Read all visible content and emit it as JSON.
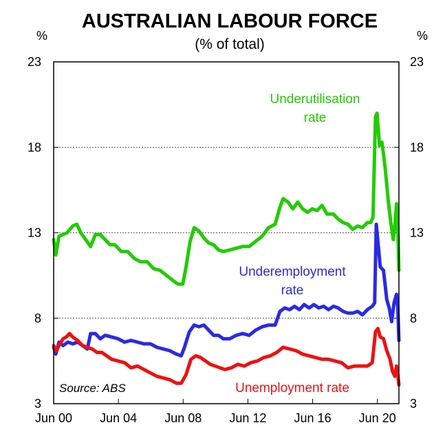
{
  "chart_data": {
    "type": "line",
    "title": "AUSTRALIAN LABOUR FORCE",
    "subtitle": "(% of total)",
    "ylabel_left": "%",
    "ylabel_right": "%",
    "ylim": [
      3,
      23
    ],
    "yticks": [
      3,
      8,
      13,
      18,
      23
    ],
    "xlim": [
      2000.42,
      2021.75
    ],
    "xticks": [
      {
        "value": 2000.42,
        "label": "Jun 00"
      },
      {
        "value": 2004.42,
        "label": "Jun 04"
      },
      {
        "value": 2008.42,
        "label": "Jun 08"
      },
      {
        "value": 2012.42,
        "label": "Jun 12"
      },
      {
        "value": 2016.42,
        "label": "Jun 16"
      },
      {
        "value": 2020.42,
        "label": "Jun 20"
      }
    ],
    "grid": "horizontal dotted",
    "source": "Source: ABS",
    "series": [
      {
        "name": "Underutilisation rate",
        "label_lines": [
          "Underutilisation",
          "rate"
        ],
        "color": "#22cc00",
        "points": [
          [
            2000.42,
            12.6
          ],
          [
            2000.55,
            11.7
          ],
          [
            2000.75,
            12.8
          ],
          [
            2001.0,
            12.9
          ],
          [
            2001.25,
            13.0
          ],
          [
            2001.6,
            13.4
          ],
          [
            2001.85,
            13.5
          ],
          [
            2002.1,
            13.0
          ],
          [
            2002.4,
            12.6
          ],
          [
            2002.7,
            12.2
          ],
          [
            2003.0,
            12.9
          ],
          [
            2003.3,
            12.9
          ],
          [
            2003.6,
            12.6
          ],
          [
            2003.9,
            12.3
          ],
          [
            2004.2,
            12.3
          ],
          [
            2004.6,
            11.9
          ],
          [
            2005.0,
            11.9
          ],
          [
            2005.4,
            11.5
          ],
          [
            2005.8,
            11.3
          ],
          [
            2006.2,
            11.3
          ],
          [
            2006.6,
            10.9
          ],
          [
            2007.0,
            10.8
          ],
          [
            2007.4,
            10.5
          ],
          [
            2007.8,
            10.2
          ],
          [
            2008.1,
            10.0
          ],
          [
            2008.4,
            10.0
          ],
          [
            2008.6,
            11.0
          ],
          [
            2008.85,
            12.5
          ],
          [
            2009.1,
            13.3
          ],
          [
            2009.4,
            13.1
          ],
          [
            2009.7,
            12.7
          ],
          [
            2010.0,
            12.4
          ],
          [
            2010.3,
            12.3
          ],
          [
            2010.6,
            12.0
          ],
          [
            2010.9,
            11.9
          ],
          [
            2011.3,
            12.0
          ],
          [
            2011.7,
            12.1
          ],
          [
            2012.1,
            12.2
          ],
          [
            2012.5,
            12.2
          ],
          [
            2012.9,
            12.5
          ],
          [
            2013.3,
            12.8
          ],
          [
            2013.7,
            13.3
          ],
          [
            2014.1,
            13.5
          ],
          [
            2014.4,
            14.5
          ],
          [
            2014.6,
            15.0
          ],
          [
            2014.9,
            14.8
          ],
          [
            2015.2,
            14.4
          ],
          [
            2015.5,
            14.8
          ],
          [
            2015.8,
            14.4
          ],
          [
            2016.1,
            14.2
          ],
          [
            2016.4,
            14.4
          ],
          [
            2016.7,
            14.3
          ],
          [
            2017.0,
            14.6
          ],
          [
            2017.3,
            14.1
          ],
          [
            2017.7,
            14.1
          ],
          [
            2018.0,
            13.8
          ],
          [
            2018.3,
            13.6
          ],
          [
            2018.6,
            13.5
          ],
          [
            2018.9,
            13.2
          ],
          [
            2019.2,
            13.4
          ],
          [
            2019.5,
            13.3
          ],
          [
            2019.8,
            13.6
          ],
          [
            2020.0,
            13.6
          ],
          [
            2020.15,
            13.9
          ],
          [
            2020.3,
            19.8
          ],
          [
            2020.4,
            20.0
          ],
          [
            2020.55,
            18.1
          ],
          [
            2020.7,
            18.3
          ],
          [
            2020.9,
            16.8
          ],
          [
            2021.1,
            14.8
          ],
          [
            2021.25,
            13.6
          ],
          [
            2021.4,
            12.6
          ],
          [
            2021.5,
            13.4
          ],
          [
            2021.6,
            14.7
          ],
          [
            2021.68,
            13.3
          ],
          [
            2021.75,
            10.8
          ]
        ]
      },
      {
        "name": "Underemployment rate",
        "label_lines": [
          "Underemployment",
          "rate"
        ],
        "color": "#2a2ae6",
        "points": [
          [
            2000.42,
            6.3
          ],
          [
            2000.55,
            5.9
          ],
          [
            2000.75,
            6.6
          ],
          [
            2001.0,
            6.4
          ],
          [
            2001.3,
            6.6
          ],
          [
            2001.6,
            6.5
          ],
          [
            2001.9,
            6.6
          ],
          [
            2002.2,
            6.4
          ],
          [
            2002.5,
            6.2
          ],
          [
            2002.7,
            7.1
          ],
          [
            2003.0,
            7.1
          ],
          [
            2003.3,
            6.8
          ],
          [
            2003.6,
            7.0
          ],
          [
            2004.0,
            6.9
          ],
          [
            2004.4,
            6.8
          ],
          [
            2004.8,
            6.6
          ],
          [
            2005.2,
            6.7
          ],
          [
            2005.6,
            6.6
          ],
          [
            2006.0,
            6.5
          ],
          [
            2006.4,
            6.5
          ],
          [
            2006.8,
            6.3
          ],
          [
            2007.2,
            6.2
          ],
          [
            2007.6,
            6.1
          ],
          [
            2008.0,
            5.9
          ],
          [
            2008.3,
            5.8
          ],
          [
            2008.5,
            6.3
          ],
          [
            2008.8,
            7.2
          ],
          [
            2009.1,
            7.6
          ],
          [
            2009.4,
            7.5
          ],
          [
            2009.7,
            7.6
          ],
          [
            2010.0,
            7.3
          ],
          [
            2010.3,
            7.0
          ],
          [
            2010.6,
            7.0
          ],
          [
            2010.9,
            6.8
          ],
          [
            2011.3,
            6.8
          ],
          [
            2011.7,
            7.0
          ],
          [
            2012.1,
            7.1
          ],
          [
            2012.5,
            7.0
          ],
          [
            2012.9,
            7.3
          ],
          [
            2013.3,
            7.5
          ],
          [
            2013.7,
            7.6
          ],
          [
            2014.1,
            7.6
          ],
          [
            2014.4,
            8.4
          ],
          [
            2014.7,
            8.6
          ],
          [
            2015.0,
            8.5
          ],
          [
            2015.3,
            8.7
          ],
          [
            2015.6,
            8.5
          ],
          [
            2015.9,
            8.8
          ],
          [
            2016.2,
            8.6
          ],
          [
            2016.5,
            8.8
          ],
          [
            2016.8,
            8.6
          ],
          [
            2017.1,
            8.7
          ],
          [
            2017.4,
            8.5
          ],
          [
            2017.7,
            8.7
          ],
          [
            2018.0,
            8.6
          ],
          [
            2018.3,
            8.4
          ],
          [
            2018.6,
            8.3
          ],
          [
            2018.9,
            8.3
          ],
          [
            2019.2,
            8.4
          ],
          [
            2019.5,
            8.2
          ],
          [
            2019.8,
            8.5
          ],
          [
            2020.1,
            8.7
          ],
          [
            2020.25,
            8.9
          ],
          [
            2020.35,
            13.5
          ],
          [
            2020.45,
            12.5
          ],
          [
            2020.6,
            11.0
          ],
          [
            2020.8,
            10.8
          ],
          [
            2021.0,
            9.1
          ],
          [
            2021.15,
            8.6
          ],
          [
            2021.3,
            7.8
          ],
          [
            2021.45,
            8.9
          ],
          [
            2021.6,
            9.4
          ],
          [
            2021.68,
            8.6
          ],
          [
            2021.75,
            6.7
          ]
        ]
      },
      {
        "name": "Unemployment rate",
        "label_lines": [
          "Unemployment rate"
        ],
        "color": "#ee1111",
        "points": [
          [
            2000.42,
            6.4
          ],
          [
            2000.6,
            6.1
          ],
          [
            2000.8,
            6.5
          ],
          [
            2001.0,
            6.8
          ],
          [
            2001.2,
            6.9
          ],
          [
            2001.4,
            7.1
          ],
          [
            2001.6,
            6.9
          ],
          [
            2001.9,
            6.7
          ],
          [
            2002.2,
            6.4
          ],
          [
            2002.5,
            6.3
          ],
          [
            2002.8,
            6.2
          ],
          [
            2003.1,
            6.0
          ],
          [
            2003.4,
            6.0
          ],
          [
            2003.7,
            5.8
          ],
          [
            2004.0,
            5.6
          ],
          [
            2004.4,
            5.5
          ],
          [
            2004.8,
            5.4
          ],
          [
            2005.2,
            5.1
          ],
          [
            2005.6,
            5.2
          ],
          [
            2006.0,
            5.0
          ],
          [
            2006.4,
            4.8
          ],
          [
            2006.8,
            4.6
          ],
          [
            2007.2,
            4.5
          ],
          [
            2007.6,
            4.4
          ],
          [
            2008.0,
            4.2
          ],
          [
            2008.3,
            4.2
          ],
          [
            2008.6,
            4.7
          ],
          [
            2008.9,
            5.6
          ],
          [
            2009.2,
            5.8
          ],
          [
            2009.5,
            5.7
          ],
          [
            2009.8,
            5.5
          ],
          [
            2010.1,
            5.3
          ],
          [
            2010.4,
            5.2
          ],
          [
            2010.7,
            5.1
          ],
          [
            2011.0,
            5.0
          ],
          [
            2011.4,
            5.1
          ],
          [
            2011.8,
            5.3
          ],
          [
            2012.2,
            5.2
          ],
          [
            2012.6,
            5.4
          ],
          [
            2013.0,
            5.5
          ],
          [
            2013.4,
            5.7
          ],
          [
            2013.8,
            5.8
          ],
          [
            2014.2,
            6.0
          ],
          [
            2014.6,
            6.3
          ],
          [
            2015.0,
            6.2
          ],
          [
            2015.4,
            6.1
          ],
          [
            2015.8,
            5.9
          ],
          [
            2016.2,
            5.8
          ],
          [
            2016.6,
            5.7
          ],
          [
            2017.0,
            5.6
          ],
          [
            2017.4,
            5.6
          ],
          [
            2017.8,
            5.5
          ],
          [
            2018.2,
            5.4
          ],
          [
            2018.6,
            5.1
          ],
          [
            2019.0,
            5.2
          ],
          [
            2019.4,
            5.2
          ],
          [
            2019.8,
            5.2
          ],
          [
            2020.1,
            5.4
          ],
          [
            2020.3,
            7.2
          ],
          [
            2020.45,
            7.4
          ],
          [
            2020.6,
            6.9
          ],
          [
            2020.8,
            6.8
          ],
          [
            2021.0,
            6.1
          ],
          [
            2021.2,
            5.6
          ],
          [
            2021.35,
            4.9
          ],
          [
            2021.5,
            4.6
          ],
          [
            2021.6,
            5.2
          ],
          [
            2021.68,
            4.7
          ],
          [
            2021.75,
            4.1
          ]
        ]
      }
    ]
  }
}
